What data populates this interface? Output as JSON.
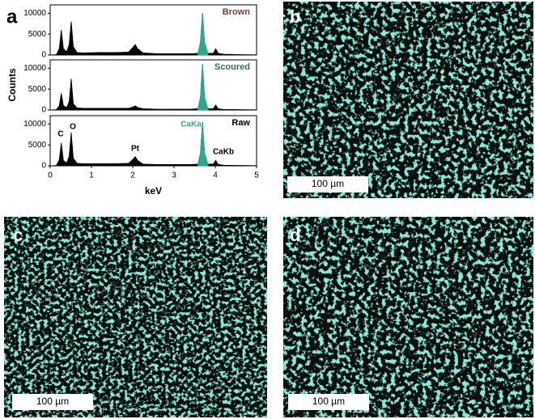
{
  "chart_data": [
    {
      "type": "area",
      "title": "Brown",
      "title_color": "#7a3a3a",
      "series": [
        {
          "color": "#000000",
          "x": [
            0,
            0.15,
            0.22,
            0.27,
            0.32,
            0.4,
            0.46,
            0.51,
            0.56,
            0.65,
            0.8,
            1.2,
            1.6,
            1.9,
            2.0,
            2.06,
            2.12,
            2.25,
            2.6,
            3.0,
            3.4,
            3.58,
            3.64,
            3.69,
            3.74,
            3.82,
            3.95,
            4.01,
            4.07,
            4.2,
            4.6,
            5.0
          ],
          "values": [
            0,
            100,
            1500,
            6000,
            1500,
            800,
            2500,
            8000,
            2000,
            600,
            500,
            600,
            600,
            700,
            1800,
            2500,
            1500,
            500,
            300,
            300,
            300,
            400,
            3000,
            10000,
            3000,
            400,
            400,
            1500,
            400,
            200,
            100,
            50
          ]
        },
        {
          "color": "#2aa98a",
          "x": [
            3.58,
            3.64,
            3.69,
            3.74,
            3.82
          ],
          "values": [
            400,
            3000,
            10000,
            3000,
            400
          ]
        }
      ],
      "xlim": [
        0,
        5
      ],
      "ylim": [
        0,
        12000
      ],
      "yticks": [
        0,
        5000,
        10000
      ]
    },
    {
      "type": "area",
      "title": "Scoured",
      "title_color": "#2f6f5f",
      "ylabel": "Counts",
      "series": [
        {
          "color": "#000000",
          "x": [
            0,
            0.15,
            0.22,
            0.27,
            0.32,
            0.4,
            0.46,
            0.51,
            0.56,
            0.65,
            0.8,
            1.2,
            1.6,
            1.9,
            2.0,
            2.06,
            2.12,
            2.25,
            2.6,
            3.0,
            3.4,
            3.58,
            3.64,
            3.69,
            3.74,
            3.82,
            3.95,
            4.01,
            4.07,
            4.2,
            4.6,
            5.0
          ],
          "values": [
            0,
            100,
            1000,
            4000,
            1000,
            600,
            2000,
            7500,
            1500,
            500,
            400,
            400,
            400,
            400,
            700,
            1000,
            600,
            300,
            200,
            200,
            200,
            300,
            3000,
            11000,
            3000,
            300,
            300,
            1200,
            300,
            150,
            80,
            40
          ]
        },
        {
          "color": "#2aa98a",
          "x": [
            3.58,
            3.64,
            3.69,
            3.74,
            3.82
          ],
          "values": [
            300,
            3000,
            11000,
            3000,
            300
          ]
        }
      ],
      "xlim": [
        0,
        5
      ],
      "ylim": [
        0,
        12000
      ],
      "yticks": [
        0,
        5000,
        10000
      ]
    },
    {
      "type": "area",
      "title": "Raw",
      "title_color": "#000000",
      "xlabel": "keV",
      "annotations": [
        "C",
        "O",
        "Pt",
        "CaKa",
        "CaKb"
      ],
      "series": [
        {
          "color": "#000000",
          "x": [
            0,
            0.15,
            0.22,
            0.27,
            0.32,
            0.4,
            0.46,
            0.51,
            0.56,
            0.65,
            0.8,
            1.2,
            1.6,
            1.9,
            2.0,
            2.06,
            2.12,
            2.25,
            2.6,
            3.0,
            3.4,
            3.58,
            3.64,
            3.69,
            3.74,
            3.82,
            3.95,
            4.01,
            4.07,
            4.2,
            4.6,
            5.0
          ],
          "values": [
            0,
            100,
            1400,
            5500,
            1300,
            700,
            2300,
            8000,
            1800,
            600,
            500,
            500,
            500,
            600,
            1500,
            2200,
            1300,
            400,
            300,
            300,
            300,
            400,
            3000,
            10500,
            3000,
            400,
            400,
            1300,
            350,
            150,
            80,
            40
          ]
        },
        {
          "color": "#2aa98a",
          "x": [
            3.58,
            3.64,
            3.69,
            3.74,
            3.82
          ],
          "values": [
            400,
            3000,
            10500,
            3000,
            400
          ]
        }
      ],
      "xlim": [
        0,
        5
      ],
      "xticks": [
        0,
        1,
        2,
        3,
        4,
        5
      ],
      "ylim": [
        0,
        12000
      ],
      "yticks": [
        0,
        5000,
        10000
      ]
    }
  ],
  "figure": {
    "panels": [
      "a",
      "b",
      "c",
      "d"
    ],
    "scale_bars": [
      "100 µm",
      "100 µm",
      "100 µm"
    ]
  }
}
